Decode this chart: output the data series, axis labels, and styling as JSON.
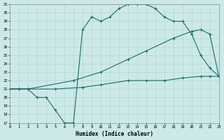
{
  "bg_color": "#cce9e8",
  "grid_color": "#aad3d1",
  "line_color": "#1a6b6b",
  "xlabel": "Humidex (Indice chaleur)",
  "xmin": 0,
  "xmax": 23,
  "ymin": 17,
  "ymax": 31,
  "curve1_x": [
    0,
    1,
    2,
    3,
    4,
    5,
    6,
    7,
    8,
    9,
    10,
    11,
    12,
    13,
    14,
    15,
    16,
    17,
    18,
    19,
    20,
    21,
    22,
    23
  ],
  "curve1_y": [
    21,
    21,
    21,
    20,
    20,
    18.5,
    17,
    17,
    28,
    29.5,
    29,
    29.5,
    30.5,
    31,
    31,
    31,
    30.5,
    29.5,
    29,
    29,
    27.5,
    25,
    23.5,
    22.5
  ],
  "curve2_x": [
    0,
    1,
    2,
    7,
    10,
    13,
    15,
    18,
    20,
    21,
    22,
    23
  ],
  "curve2_y": [
    21,
    21,
    21,
    22,
    23,
    24.5,
    25.5,
    27,
    27.8,
    28,
    27.5,
    22.5
  ],
  "curve3_x": [
    0,
    1,
    2,
    5,
    8,
    10,
    13,
    15,
    17,
    19,
    21,
    22,
    23
  ],
  "curve3_y": [
    21,
    21,
    21,
    21,
    21.2,
    21.5,
    22,
    22,
    22,
    22.3,
    22.5,
    22.5,
    22.5
  ]
}
